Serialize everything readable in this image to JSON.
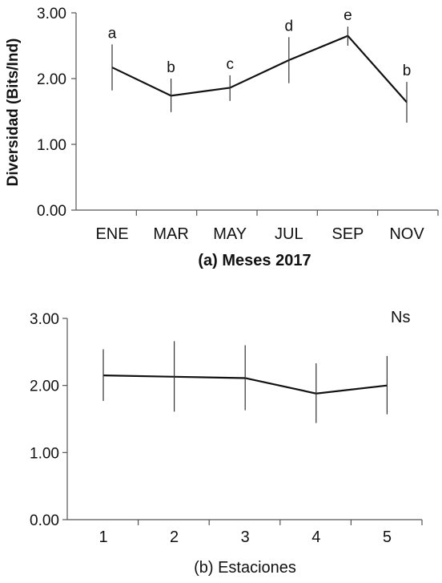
{
  "chart_data": [
    {
      "type": "line",
      "title": "",
      "xlabel": "(a) Meses 2017",
      "ylabel": "Diversidad (Bits/Ind)",
      "ylim": [
        0,
        3
      ],
      "yticks": [
        "0.00",
        "1.00",
        "2.00",
        "3.00"
      ],
      "categories": [
        "ENE",
        "MAR",
        "MAY",
        "JUL",
        "SEP",
        "NOV"
      ],
      "series": [
        {
          "values": [
            2.17,
            1.74,
            1.86,
            2.28,
            2.65,
            1.64
          ],
          "error_low": [
            1.82,
            1.49,
            1.66,
            1.93,
            2.5,
            1.33
          ],
          "error_high": [
            2.52,
            2.0,
            2.05,
            2.63,
            2.79,
            1.95
          ]
        }
      ],
      "annotations": [
        "a",
        "b",
        "c",
        "d",
        "e",
        "b"
      ],
      "grid": false
    },
    {
      "type": "line",
      "title": "",
      "xlabel": "(b) Estaciones",
      "ylabel": "",
      "ylim": [
        0,
        3
      ],
      "yticks": [
        "0.00",
        "1.00",
        "2.00",
        "3.00"
      ],
      "categories": [
        "1",
        "2",
        "3",
        "4",
        "5"
      ],
      "series": [
        {
          "values": [
            2.15,
            2.13,
            2.11,
            1.88,
            2.0
          ],
          "error_low": [
            1.77,
            1.61,
            1.63,
            1.44,
            1.57
          ],
          "error_high": [
            2.54,
            2.66,
            2.6,
            2.33,
            2.44
          ]
        }
      ],
      "annotations": [
        "Ns"
      ],
      "grid": false
    }
  ]
}
